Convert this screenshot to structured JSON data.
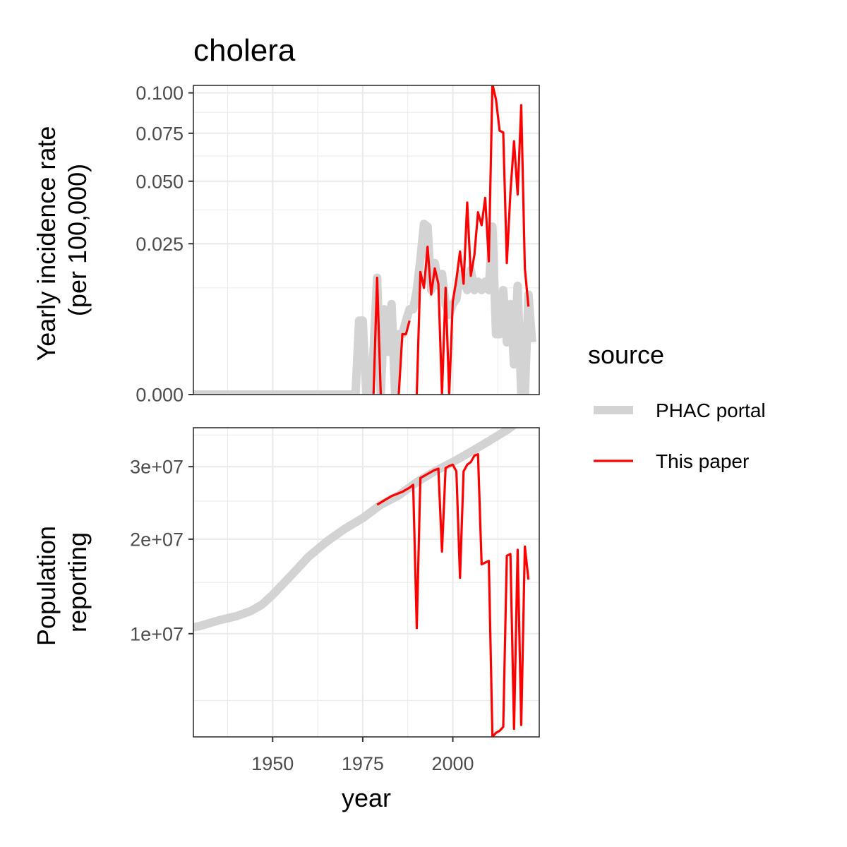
{
  "chart_data": {
    "type": "line",
    "title": "cholera",
    "xlabel": "year",
    "x_ticks": [
      1950,
      1975,
      2000
    ],
    "xlim": [
      1928,
      2024
    ],
    "legend": {
      "title": "source",
      "placement": "right",
      "entries": [
        {
          "name": "PHAC portal",
          "color": "#d3d3d3"
        },
        {
          "name": "This paper",
          "color": "#ff0000"
        }
      ]
    },
    "panels": [
      {
        "id": "incidence",
        "ylabel": [
          "Yearly incidence rate",
          "(per 100,000)"
        ],
        "y_scale": "sqrt",
        "ylim": [
          0,
          0.105
        ],
        "y_ticks": [
          0.0,
          0.025,
          0.05,
          0.075,
          0.1
        ],
        "y_tick_labels": [
          "0.000",
          "0.025",
          "0.050",
          "0.075",
          "0.100"
        ],
        "series": [
          {
            "name": "PHAC portal",
            "points": [
              [
                1924,
                0
              ],
              [
                1973,
                0
              ],
              [
                1974,
                0.006
              ],
              [
                1975,
                0.006
              ],
              [
                1976,
                0
              ],
              [
                1977,
                0
              ],
              [
                1978,
                0.002
              ],
              [
                1979,
                0.015
              ],
              [
                1980,
                0
              ],
              [
                1981,
                0.008
              ],
              [
                1982,
                0.002
              ],
              [
                1983,
                0.009
              ],
              [
                1984,
                0
              ],
              [
                1985,
                0.004
              ],
              [
                1986,
                0.004
              ],
              [
                1987,
                0.006
              ],
              [
                1988,
                0.008
              ],
              [
                1989,
                0.008
              ],
              [
                1990,
                0.012
              ],
              [
                1991,
                0.02
              ],
              [
                1992,
                0.032
              ],
              [
                1993,
                0.031
              ],
              [
                1994,
                0.012
              ],
              [
                1995,
                0.019
              ],
              [
                1996,
                0.013
              ],
              [
                1997,
                0.016
              ],
              [
                1998,
                0.009
              ],
              [
                1999,
                0.007
              ],
              [
                2000,
                0.009
              ],
              [
                2001,
                0.01
              ],
              [
                2002,
                0.016
              ],
              [
                2003,
                0.015
              ],
              [
                2004,
                0.012
              ],
              [
                2005,
                0.017
              ],
              [
                2006,
                0.012
              ],
              [
                2007,
                0.014
              ],
              [
                2008,
                0.012
              ],
              [
                2009,
                0.014
              ],
              [
                2010,
                0.012
              ],
              [
                2011,
                0.031
              ],
              [
                2012,
                0.004
              ],
              [
                2013,
                0.004
              ],
              [
                2014,
                0.012
              ],
              [
                2015,
                0.003
              ],
              [
                2016,
                0.009
              ],
              [
                2017,
                0.001
              ],
              [
                2018,
                0.013
              ],
              [
                2019,
                0
              ],
              [
                2020,
                0
              ],
              [
                2021,
                0.011
              ],
              [
                2022,
                0.003
              ]
            ]
          },
          {
            "name": "This paper",
            "segments": [
              [
                [
                  1978,
                  0
                ],
                [
                  1979,
                  0.015
                ],
                [
                  1980,
                  0
                ]
              ],
              [
                [
                  1985,
                  0
                ],
                [
                  1986,
                  0.004
                ],
                [
                  1987,
                  0.004
                ],
                [
                  1988,
                  0.006
                ]
              ],
              [
                [
                  1990,
                  0
                ],
                [
                  1991,
                  0.0165
                ],
                [
                  1992,
                  0.0125
                ],
                [
                  1993,
                  0.024
                ],
                [
                  1994,
                  0.011
                ],
                [
                  1995,
                  0.0175
                ],
                [
                  1996,
                  0.0135
                ],
                [
                  1997,
                  0
                ],
                [
                  1998,
                  0.0125
                ],
                [
                  1999,
                  0
                ],
                [
                  2000,
                  0.0095
                ],
                [
                  2001,
                  0.0145
                ],
                [
                  2002,
                  0.0225
                ],
                [
                  2003,
                  0.0135
                ],
                [
                  2004,
                  0.0405
                ],
                [
                  2005,
                  0.0155
                ],
                [
                  2006,
                  0.0215
                ],
                [
                  2007,
                  0.0365
                ],
                [
                  2008,
                  0.0315
                ],
                [
                  2009,
                  0.0425
                ],
                [
                  2010,
                  0.0195
                ],
                [
                  2011,
                  0.106
                ],
                [
                  2012,
                  0.0955
                ],
                [
                  2013,
                  0.0765
                ],
                [
                  2014,
                  0.0755
                ],
                [
                  2015,
                  0.019
                ],
                [
                  2016,
                  0.045
                ],
                [
                  2017,
                  0.0705
                ],
                [
                  2018,
                  0.044
                ],
                [
                  2019,
                  0.092
                ],
                [
                  2020,
                  0.0175
                ],
                [
                  2021,
                  0.0085
                ]
              ]
            ]
          }
        ]
      },
      {
        "id": "population",
        "ylabel": [
          "Population",
          "reporting"
        ],
        "y_scale": "sqrt",
        "ylim": [
          3000000,
          36200000
        ],
        "y_ticks": [
          10000000,
          20000000,
          30000000
        ],
        "y_tick_labels": [
          "1e+07",
          "2e+07",
          "3e+07"
        ],
        "y_minor": [
          5000000,
          15000000,
          25000000,
          35000000
        ],
        "series": [
          {
            "name": "PHAC portal",
            "points": [
              [
                1924,
                10300000
              ],
              [
                1930,
                10700000
              ],
              [
                1935,
                11200000
              ],
              [
                1940,
                11600000
              ],
              [
                1944,
                12100000
              ],
              [
                1947,
                12700000
              ],
              [
                1950,
                13700000
              ],
              [
                1955,
                15700000
              ],
              [
                1960,
                17900000
              ],
              [
                1965,
                19700000
              ],
              [
                1970,
                21300000
              ],
              [
                1975,
                22700000
              ],
              [
                1980,
                24500000
              ],
              [
                1985,
                25800000
              ],
              [
                1990,
                27700000
              ],
              [
                1995,
                29300000
              ],
              [
                2000,
                30700000
              ],
              [
                2005,
                32300000
              ],
              [
                2010,
                34000000
              ],
              [
                2015,
                35800000
              ],
              [
                2020,
                38000000
              ],
              [
                2022,
                38900000
              ]
            ]
          },
          {
            "name": "This paper",
            "points": [
              [
                1979,
                24500000
              ],
              [
                1980,
                24800000
              ],
              [
                1981,
                25100000
              ],
              [
                1982,
                25400000
              ],
              [
                1983,
                25700000
              ],
              [
                1984,
                25900000
              ],
              [
                1985,
                26100000
              ],
              [
                1986,
                26300000
              ],
              [
                1987,
                26600000
              ],
              [
                1988,
                26900000
              ],
              [
                1989,
                27300000
              ],
              [
                1990,
                10500000
              ],
              [
                1991,
                28300000
              ],
              [
                1992,
                28600000
              ],
              [
                1993,
                28900000
              ],
              [
                1994,
                29200000
              ],
              [
                1995,
                29500000
              ],
              [
                1996,
                29700000
              ],
              [
                1997,
                18500000
              ],
              [
                1998,
                29800000
              ],
              [
                1999,
                30100000
              ],
              [
                2000,
                30300000
              ],
              [
                2001,
                29300000
              ],
              [
                2002,
                15500000
              ],
              [
                2003,
                29300000
              ],
              [
                2004,
                30300000
              ],
              [
                2005,
                30700000
              ],
              [
                2006,
                31700000
              ],
              [
                2007,
                31900000
              ],
              [
                2008,
                17000000
              ],
              [
                2009,
                17200000
              ],
              [
                2010,
                17400000
              ],
              [
                2011,
                3000000
              ],
              [
                2012,
                3200000
              ],
              [
                2013,
                3300000
              ],
              [
                2014,
                3500000
              ],
              [
                2015,
                18000000
              ],
              [
                2016,
                18200000
              ],
              [
                2017,
                3400000
              ],
              [
                2018,
                18700000
              ],
              [
                2019,
                3600000
              ],
              [
                2020,
                19100000
              ],
              [
                2021,
                15300000
              ]
            ]
          }
        ]
      }
    ]
  }
}
